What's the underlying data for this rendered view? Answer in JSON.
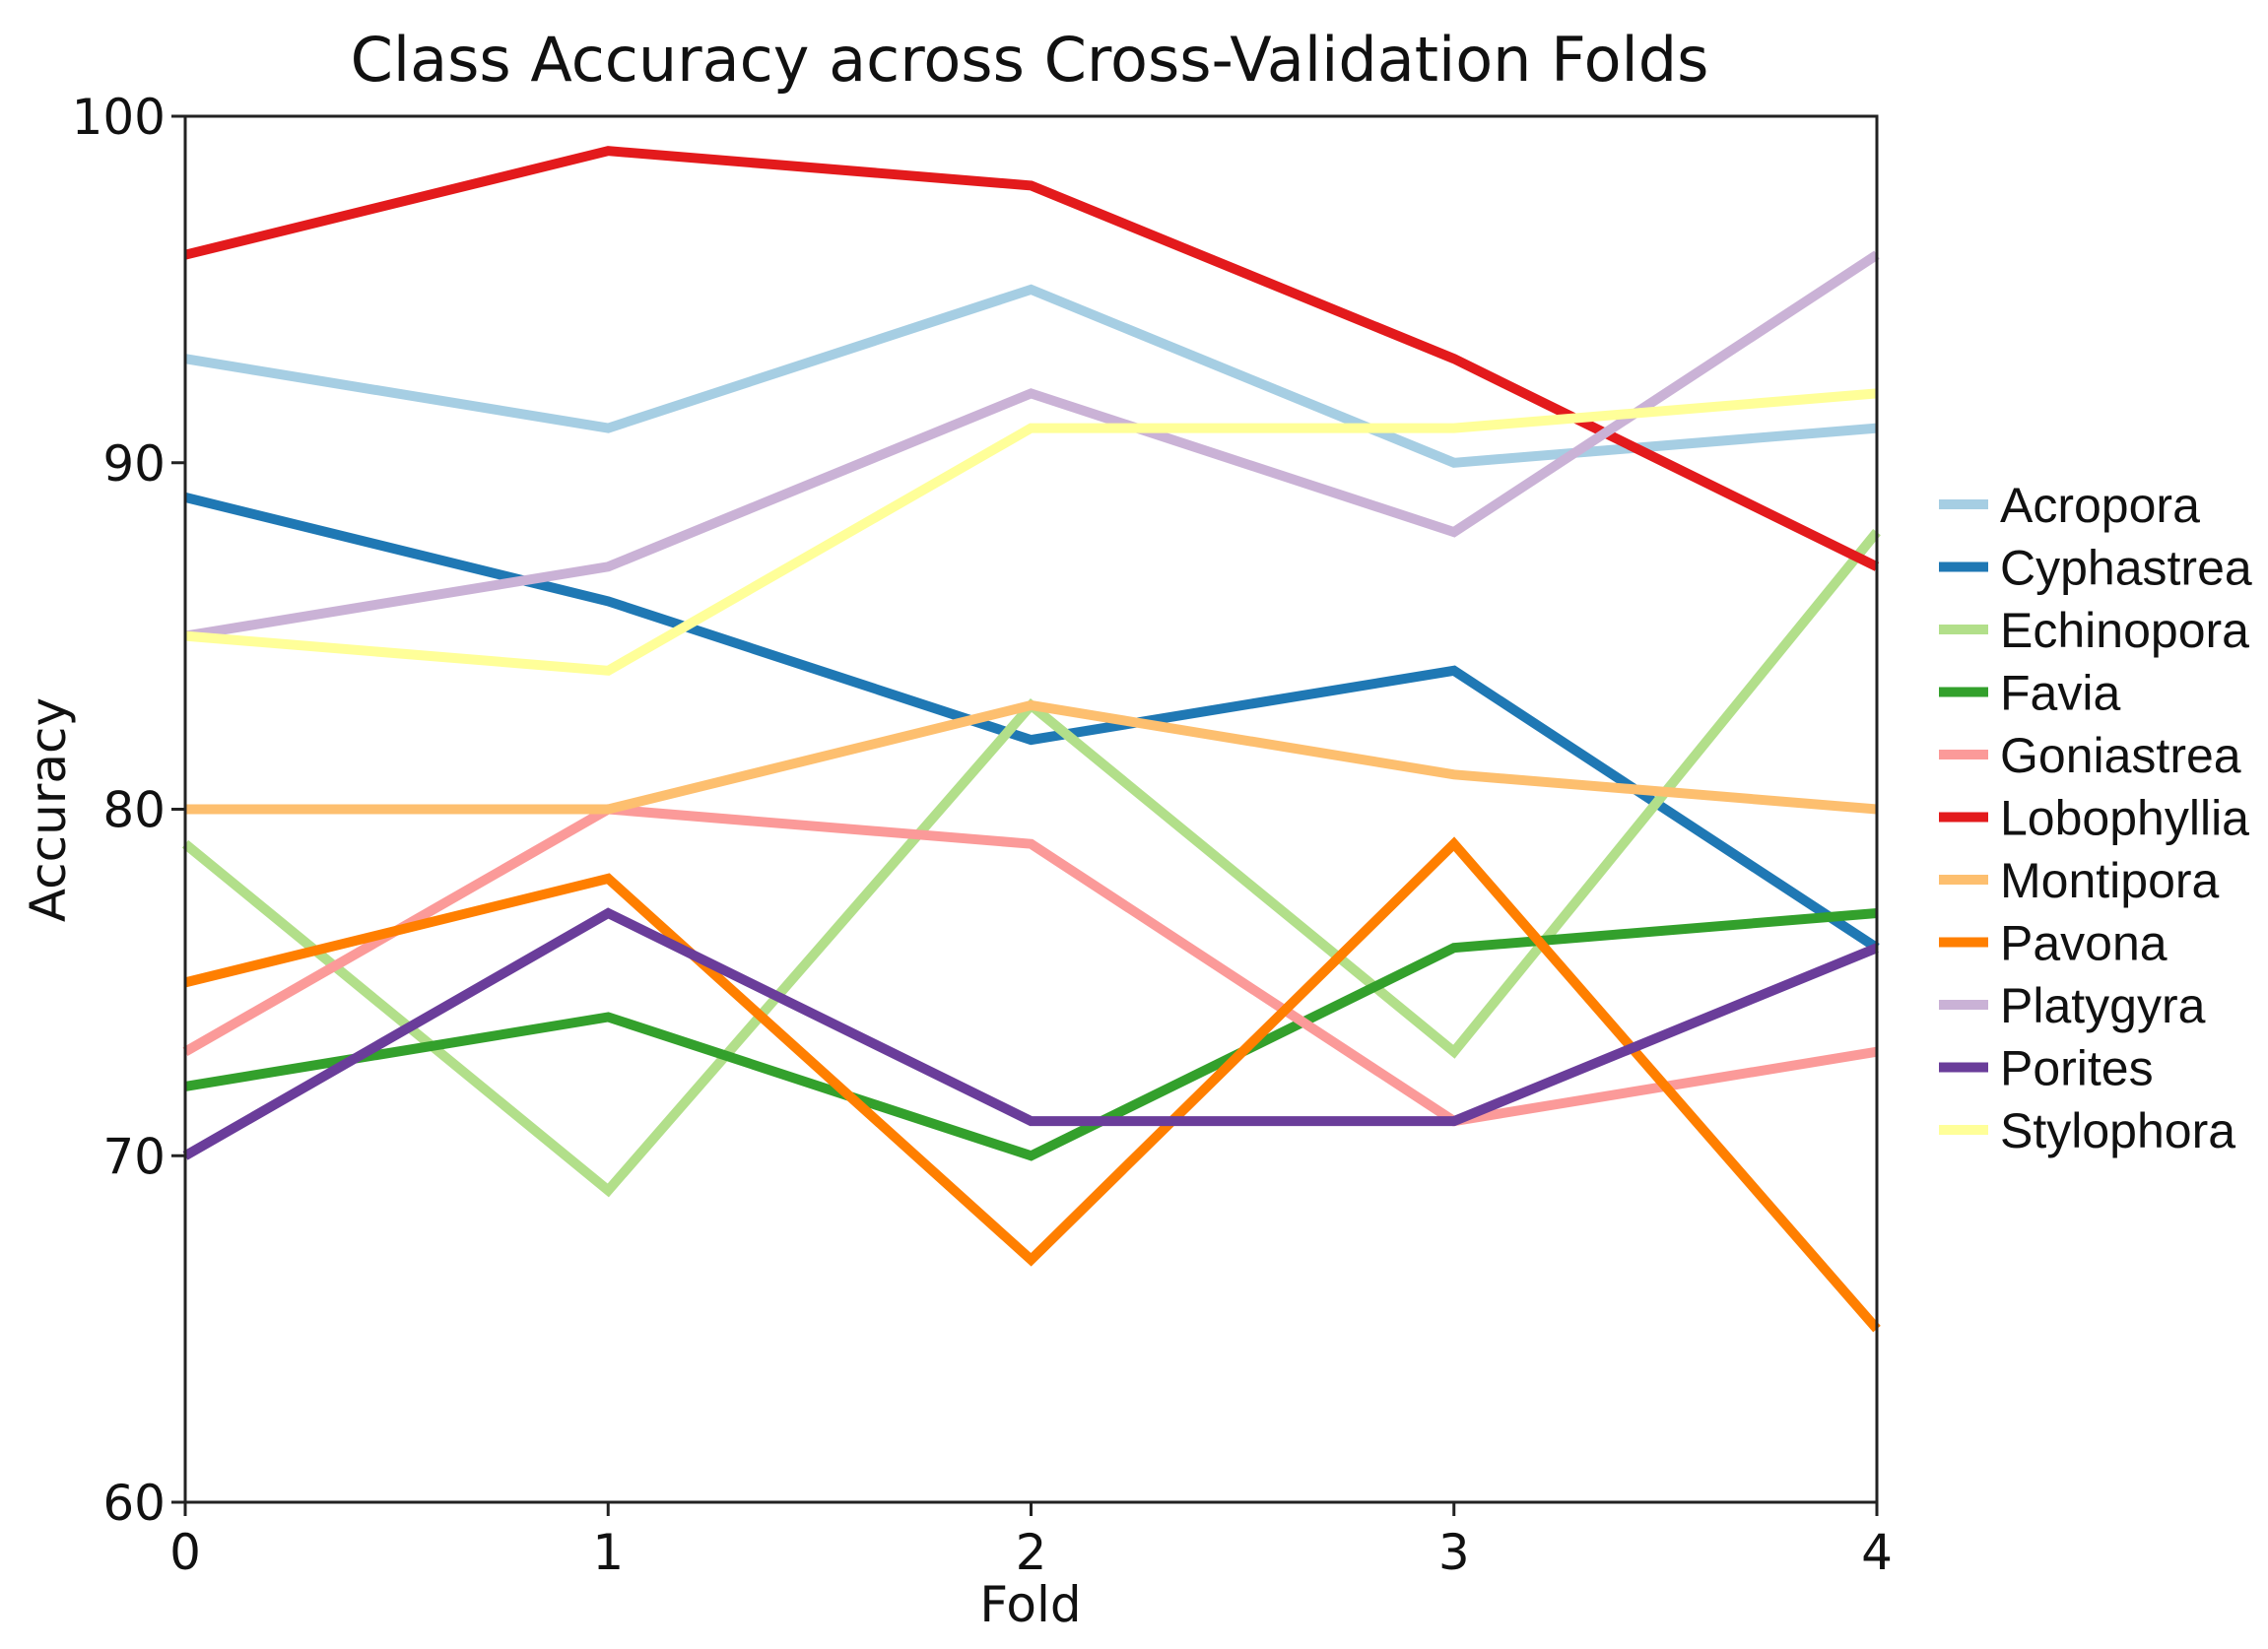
{
  "chart_data": {
    "type": "line",
    "title": "Class Accuracy across Cross-Validation Folds",
    "xlabel": "Fold",
    "ylabel": "Accuracy",
    "x": [
      0,
      1,
      2,
      3,
      4
    ],
    "xlim": [
      0,
      4
    ],
    "ylim": [
      60,
      100
    ],
    "xticks": [
      "0",
      "1",
      "2",
      "3",
      "4"
    ],
    "yticks": [
      "60",
      "70",
      "80",
      "90",
      "100"
    ],
    "grid": false,
    "legend_position": "right",
    "series": [
      {
        "name": "Acropora",
        "color": "#a6cee3",
        "values": [
          93,
          91,
          95,
          90,
          91
        ]
      },
      {
        "name": "Cyphastrea",
        "color": "#1f78b4",
        "values": [
          89,
          86,
          82,
          84,
          76
        ]
      },
      {
        "name": "Echinopora",
        "color": "#b2df8a",
        "values": [
          79,
          69,
          83,
          73,
          88
        ]
      },
      {
        "name": "Favia",
        "color": "#33a02c",
        "values": [
          72,
          74,
          70,
          76,
          77
        ]
      },
      {
        "name": "Goniastrea",
        "color": "#fb9a99",
        "values": [
          73,
          80,
          79,
          71,
          73
        ]
      },
      {
        "name": "Lobophyllia",
        "color": "#e31a1c",
        "values": [
          96,
          99,
          98,
          93,
          87
        ]
      },
      {
        "name": "Montipora",
        "color": "#fdbf6f",
        "values": [
          80,
          80,
          83,
          81,
          80
        ]
      },
      {
        "name": "Pavona",
        "color": "#ff7f00",
        "values": [
          75,
          78,
          67,
          79,
          65
        ]
      },
      {
        "name": "Platygyra",
        "color": "#cab2d6",
        "values": [
          85,
          87,
          92,
          88,
          96
        ]
      },
      {
        "name": "Porites",
        "color": "#6a3d9a",
        "values": [
          70,
          77,
          71,
          71,
          76
        ]
      },
      {
        "name": "Stylophora",
        "color": "#ffff99",
        "values": [
          85,
          84,
          91,
          91,
          92
        ]
      }
    ]
  }
}
